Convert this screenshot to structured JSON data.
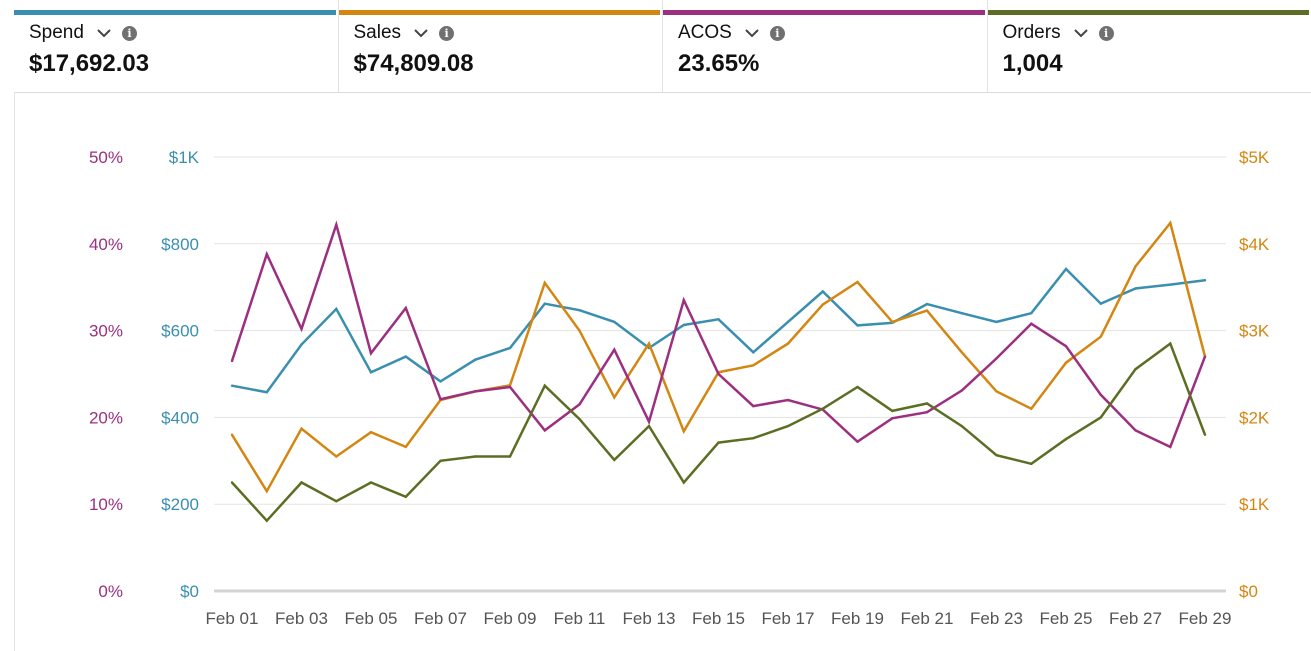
{
  "metrics": [
    {
      "label": "Spend",
      "value": "$17,692.03",
      "color": "#3a8fb0"
    },
    {
      "label": "Sales",
      "value": "$74,809.08",
      "color": "#d48612"
    },
    {
      "label": "ACOS",
      "value": "23.65%",
      "color": "#9c2f7f"
    },
    {
      "label": "Orders",
      "value": "1,004",
      "color": "#5b6e23"
    }
  ],
  "chart_data": {
    "type": "line",
    "x": [
      "Feb 01",
      "Feb 02",
      "Feb 03",
      "Feb 04",
      "Feb 05",
      "Feb 06",
      "Feb 07",
      "Feb 08",
      "Feb 09",
      "Feb 10",
      "Feb 11",
      "Feb 12",
      "Feb 13",
      "Feb 14",
      "Feb 15",
      "Feb 16",
      "Feb 17",
      "Feb 18",
      "Feb 19",
      "Feb 20",
      "Feb 21",
      "Feb 22",
      "Feb 23",
      "Feb 24",
      "Feb 25",
      "Feb 26",
      "Feb 27",
      "Feb 28",
      "Feb 29"
    ],
    "x_tick_labels": [
      "Feb 01",
      "Feb 03",
      "Feb 05",
      "Feb 07",
      "Feb 09",
      "Feb 11",
      "Feb 13",
      "Feb 15",
      "Feb 17",
      "Feb 19",
      "Feb 21",
      "Feb 23",
      "Feb 25",
      "Feb 27",
      "Feb 29"
    ],
    "axes": {
      "acos": {
        "ticks": [
          "0%",
          "10%",
          "20%",
          "30%",
          "40%",
          "50%"
        ],
        "range": [
          0,
          50
        ],
        "color": "#9c2f7f"
      },
      "spend": {
        "ticks": [
          "$0",
          "$200",
          "$400",
          "$600",
          "$800",
          "$1K"
        ],
        "range": [
          0,
          1000
        ],
        "color": "#3a8fb0"
      },
      "sales": {
        "ticks": [
          "$0",
          "$1K",
          "$2K",
          "$3K",
          "$4K",
          "$5K"
        ],
        "range": [
          0,
          5000
        ],
        "color": "#d48612"
      }
    },
    "grid": true,
    "series": [
      {
        "key": "spend",
        "axis": "spend",
        "color": "#3a8fb0",
        "values": [
          473,
          458,
          568,
          650,
          504,
          540,
          483,
          533,
          560,
          662,
          647,
          620,
          560,
          613,
          626,
          550,
          620,
          690,
          612,
          618,
          661,
          640,
          620,
          640,
          742,
          662,
          697,
          706,
          716
        ]
      },
      {
        "key": "sales",
        "axis": "sales",
        "color": "#d48612",
        "values": [
          1800,
          1150,
          1870,
          1550,
          1830,
          1660,
          2200,
          2300,
          2370,
          3550,
          3000,
          2230,
          2850,
          1840,
          2520,
          2600,
          2850,
          3300,
          3560,
          3100,
          3230,
          2750,
          2300,
          2100,
          2630,
          2930,
          3740,
          4240,
          2700
        ]
      },
      {
        "key": "acos",
        "axis": "acos",
        "color": "#9c2f7f",
        "values": [
          26.5,
          38.8,
          30.2,
          42.2,
          27.4,
          32.6,
          22.1,
          23.0,
          23.5,
          18.5,
          21.5,
          27.8,
          19.5,
          33.5,
          25.0,
          21.3,
          22.0,
          20.9,
          17.2,
          19.9,
          20.6,
          23.1,
          26.8,
          30.8,
          28.2,
          22.6,
          18.5,
          16.6,
          27.0
        ]
      },
      {
        "key": "orders",
        "axis": "spend",
        "color": "#5b6e23",
        "values": [
          250,
          162,
          250,
          207,
          250,
          217,
          300,
          310,
          310,
          473,
          396,
          302,
          380,
          250,
          342,
          352,
          380,
          420,
          470,
          415,
          432,
          380,
          313,
          293,
          350,
          400,
          511,
          570,
          360
        ]
      }
    ]
  }
}
